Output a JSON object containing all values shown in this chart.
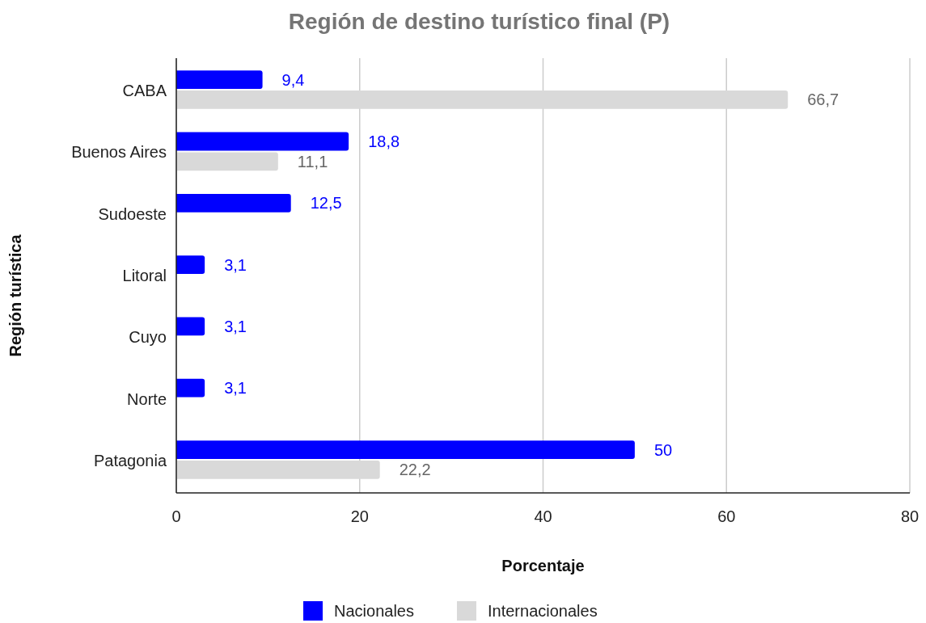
{
  "chart_data": {
    "type": "bar",
    "orientation": "horizontal",
    "title": "Región de destino turístico final (P)",
    "xlabel": "Porcentaje",
    "ylabel": "Región turística",
    "categories": [
      "CABA",
      "Buenos Aires",
      "Sudoeste",
      "Litoral",
      "Cuyo",
      "Norte",
      "Patagonia"
    ],
    "series": [
      {
        "name": "Nacionales",
        "color": "#0000ff",
        "values": [
          9.4,
          18.8,
          12.5,
          3.1,
          3.1,
          3.1,
          50
        ],
        "value_labels": [
          "9,4",
          "18,8",
          "12,5",
          "3,1",
          "3,1",
          "3,1",
          "50"
        ]
      },
      {
        "name": "Internacionales",
        "color": "#d9d9d9",
        "values": [
          66.7,
          11.1,
          null,
          null,
          null,
          null,
          22.2
        ],
        "value_labels": [
          "66,7",
          "11,1",
          null,
          null,
          null,
          null,
          "22,2"
        ]
      }
    ],
    "xlim": [
      0,
      80
    ],
    "xticks": [
      0,
      20,
      40,
      60,
      80
    ],
    "grid": "x",
    "legend": "bottom"
  }
}
